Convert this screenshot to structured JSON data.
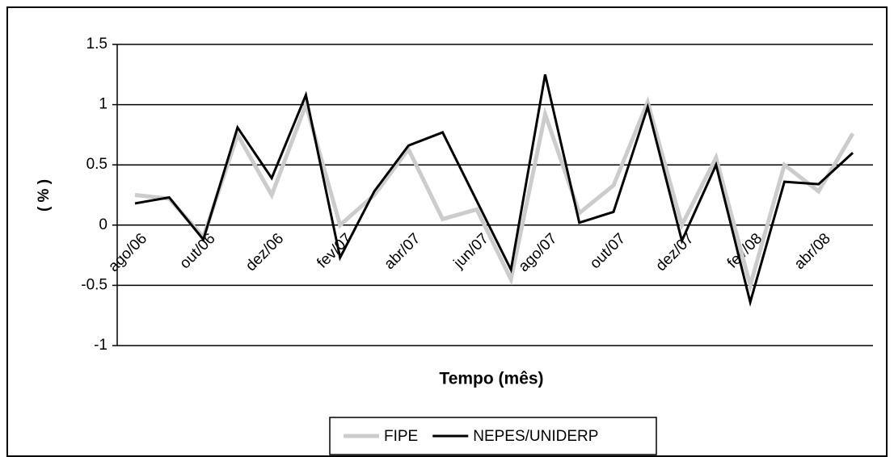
{
  "chart_data": {
    "type": "line",
    "x_label": "Tempo (mês)",
    "y_label": "( % )",
    "categories": [
      "ago/06",
      null,
      "out/06",
      null,
      "dez/06",
      null,
      "fev/07",
      null,
      "abr/07",
      null,
      "jun/07",
      null,
      "ago/07",
      null,
      "out/07",
      null,
      "dez/07",
      null,
      "fev/08",
      null,
      "abr/08",
      null
    ],
    "series": [
      {
        "name": "FIPE",
        "color": "#cccccc",
        "values": [
          0.25,
          0.22,
          -0.1,
          0.75,
          0.25,
          1.0,
          0.0,
          0.25,
          0.63,
          0.05,
          0.13,
          -0.45,
          0.92,
          0.1,
          0.33,
          1.02,
          0.0,
          0.56,
          -0.5,
          0.5,
          0.28,
          0.76
        ]
      },
      {
        "name": "NEPES/UNIDERP",
        "color": "#000000",
        "values": [
          0.18,
          0.23,
          -0.12,
          0.81,
          0.39,
          1.08,
          -0.27,
          0.28,
          0.66,
          0.77,
          0.2,
          -0.37,
          1.25,
          0.02,
          0.11,
          0.98,
          -0.13,
          0.5,
          -0.64,
          0.36,
          0.34,
          0.6
        ]
      }
    ],
    "ylim": [
      -1,
      1.5
    ],
    "yticks": [
      -1,
      -0.5,
      0,
      0.5,
      1,
      1.5
    ],
    "grid": true,
    "legend": "bottom"
  }
}
